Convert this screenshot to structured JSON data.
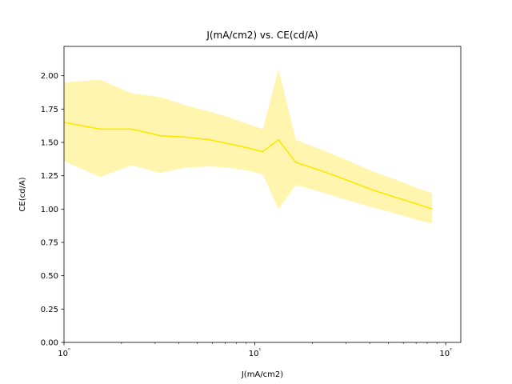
{
  "chart_data": {
    "type": "line",
    "title": "J(mA/cm2) vs. CE(cd/A)",
    "xlabel": "J(mA/cm2)",
    "ylabel": "CE(cd/A)",
    "xscale": "log",
    "xlim": [
      1,
      120
    ],
    "ylim": [
      0,
      2.22
    ],
    "grid": false,
    "x_ticks": [
      1,
      10,
      100
    ],
    "x_tick_labels": [
      "10⁰",
      "10¹",
      "10²"
    ],
    "y_ticks": [
      0.0,
      0.25,
      0.5,
      0.75,
      1.0,
      1.25,
      1.5,
      1.75,
      2.0
    ],
    "y_tick_labels": [
      "0.00",
      "0.25",
      "0.50",
      "0.75",
      "1.00",
      "1.25",
      "1.50",
      "1.75",
      "2.00"
    ],
    "series": [
      {
        "color": "#ffe600",
        "band_color": "#fff3a0",
        "x": [
          1.0,
          1.55,
          2.25,
          3.2,
          4.3,
          5.8,
          7.3,
          9.1,
          11.0,
          13.3,
          16.4,
          22.0,
          30.0,
          42.0,
          60.0,
          70.0,
          85.0
        ],
        "y": [
          1.65,
          1.6,
          1.6,
          1.55,
          1.54,
          1.52,
          1.49,
          1.46,
          1.43,
          1.52,
          1.35,
          1.29,
          1.22,
          1.14,
          1.07,
          1.04,
          1.0
        ],
        "y_upper": [
          1.95,
          1.97,
          1.87,
          1.84,
          1.78,
          1.73,
          1.69,
          1.64,
          1.6,
          2.05,
          1.52,
          1.45,
          1.37,
          1.28,
          1.2,
          1.16,
          1.12
        ],
        "y_lower": [
          1.36,
          1.24,
          1.33,
          1.27,
          1.31,
          1.32,
          1.31,
          1.29,
          1.26,
          1.0,
          1.18,
          1.13,
          1.07,
          1.01,
          0.95,
          0.92,
          0.89
        ]
      }
    ]
  }
}
